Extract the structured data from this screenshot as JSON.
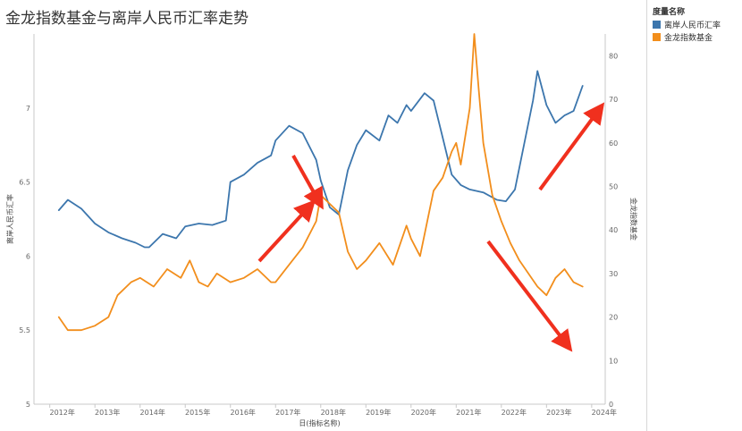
{
  "title": "金龙指数基金与离岸人民币汇率走势",
  "legend": {
    "title": "度量名称",
    "items": [
      {
        "label": "离岸人民币汇率",
        "color": "#3c76ad"
      },
      {
        "label": "金龙指数基金",
        "color": "#f28e1c"
      }
    ]
  },
  "chart_data": {
    "type": "line",
    "title": "金龙指数基金与离岸人民币汇率走势",
    "xlabel": "日(指标名称)",
    "ylabel_left": "离岸人民币汇率",
    "ylabel_right": "金龙指数基金",
    "x_ticks": [
      "2012年",
      "2013年",
      "2014年",
      "2015年",
      "2016年",
      "2017年",
      "2018年",
      "2019年",
      "2020年",
      "2021年",
      "2022年",
      "2023年",
      "2024年"
    ],
    "y_left_ticks": [
      "5",
      "5.5",
      "6",
      "6.5",
      "7"
    ],
    "y_left_range": [
      5,
      7.5
    ],
    "y_right_ticks": [
      "0",
      "10",
      "20",
      "30",
      "40",
      "50",
      "60",
      "70",
      "80"
    ],
    "y_right_range": [
      0,
      85
    ],
    "series": [
      {
        "name": "离岸人民币汇率",
        "axis": "left",
        "color": "#3c76ad",
        "x": [
          2012.2,
          2012.4,
          2012.7,
          2013.0,
          2013.3,
          2013.6,
          2013.9,
          2014.1,
          2014.2,
          2014.5,
          2014.8,
          2015.0,
          2015.3,
          2015.6,
          2015.9,
          2016.0,
          2016.3,
          2016.6,
          2016.9,
          2017.0,
          2017.3,
          2017.6,
          2017.9,
          2018.0,
          2018.2,
          2018.4,
          2018.6,
          2018.8,
          2019.0,
          2019.3,
          2019.5,
          2019.7,
          2019.9,
          2020.0,
          2020.3,
          2020.5,
          2020.7,
          2020.9,
          2021.1,
          2021.3,
          2021.6,
          2021.9,
          2022.1,
          2022.3,
          2022.5,
          2022.7,
          2022.8,
          2023.0,
          2023.2,
          2023.4,
          2023.6,
          2023.8
        ],
        "values": [
          6.31,
          6.38,
          6.32,
          6.22,
          6.16,
          6.12,
          6.09,
          6.06,
          6.06,
          6.15,
          6.12,
          6.2,
          6.22,
          6.21,
          6.24,
          6.5,
          6.55,
          6.63,
          6.68,
          6.78,
          6.88,
          6.83,
          6.65,
          6.51,
          6.33,
          6.28,
          6.58,
          6.75,
          6.85,
          6.78,
          6.95,
          6.9,
          7.02,
          6.98,
          7.1,
          7.05,
          6.8,
          6.55,
          6.48,
          6.45,
          6.43,
          6.38,
          6.37,
          6.45,
          6.75,
          7.05,
          7.25,
          7.02,
          6.9,
          6.95,
          6.98,
          7.15
        ]
      },
      {
        "name": "金龙指数基金",
        "axis": "right",
        "color": "#f28e1c",
        "x": [
          2012.2,
          2012.4,
          2012.7,
          2013.0,
          2013.3,
          2013.5,
          2013.8,
          2014.0,
          2014.3,
          2014.6,
          2014.9,
          2015.1,
          2015.3,
          2015.5,
          2015.7,
          2016.0,
          2016.3,
          2016.6,
          2016.9,
          2017.0,
          2017.3,
          2017.6,
          2017.9,
          2018.0,
          2018.2,
          2018.4,
          2018.6,
          2018.8,
          2019.0,
          2019.3,
          2019.6,
          2019.9,
          2020.0,
          2020.2,
          2020.5,
          2020.7,
          2020.9,
          2021.0,
          2021.1,
          2021.3,
          2021.4,
          2021.5,
          2021.6,
          2021.8,
          2022.0,
          2022.2,
          2022.4,
          2022.6,
          2022.8,
          2023.0,
          2023.2,
          2023.4,
          2023.6,
          2023.8
        ],
        "values": [
          20,
          17,
          17,
          18,
          20,
          25,
          28,
          29,
          27,
          31,
          29,
          33,
          28,
          27,
          30,
          28,
          29,
          31,
          28,
          28,
          32,
          36,
          42,
          48,
          46,
          44,
          35,
          31,
          33,
          37,
          32,
          41,
          38,
          34,
          49,
          52,
          58,
          60,
          55,
          68,
          85,
          72,
          60,
          48,
          42,
          37,
          33,
          30,
          27,
          25,
          29,
          31,
          28,
          27
        ]
      }
    ]
  }
}
